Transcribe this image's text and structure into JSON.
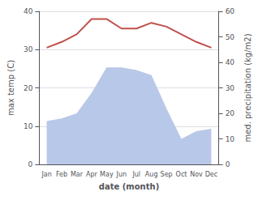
{
  "chart_data": {
    "type": "line",
    "xlabel": "date (month)",
    "ylabel": "max temp (C)",
    "y2label": "med. precipitation (kg/m2)",
    "categories": [
      "Jan",
      "Feb",
      "Mar",
      "Apr",
      "May",
      "Jun",
      "Jul",
      "Aug",
      "Sep",
      "Oct",
      "Nov",
      "Dec"
    ],
    "series": [
      {
        "type": "area",
        "color": "#b8c8e8",
        "axis": "y2",
        "values": [
          17,
          18,
          20,
          28,
          38,
          38,
          37,
          35,
          22,
          10,
          13,
          14
        ]
      },
      {
        "type": "line",
        "color": "#c0504d",
        "values": [
          30.5,
          32,
          34,
          38,
          38,
          35.5,
          35.5,
          37,
          36,
          34,
          32,
          30.5
        ]
      }
    ],
    "ylim": [
      0,
      40
    ],
    "yticks": [
      0,
      10,
      20,
      30,
      40
    ],
    "y2lim": [
      0,
      60
    ],
    "y2ticks": [
      0,
      10,
      20,
      30,
      40,
      50,
      60
    ],
    "grid": true
  }
}
